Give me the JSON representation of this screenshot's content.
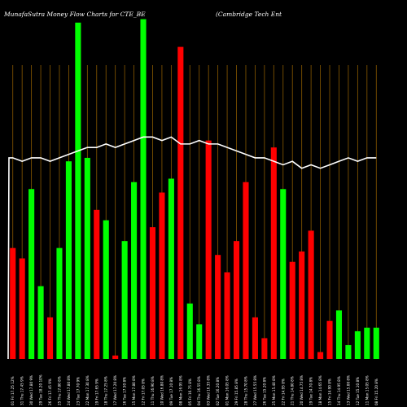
{
  "chart_data": {
    "type": "bar",
    "title_left": "MunafaSutra  Money Flow  Charts for CTE_BE",
    "title_right": "(Cambridge   Tech Ent",
    "categories": [
      "01 Fri 17.25 12%",
      "31 Thu 17.45 9%",
      "30 Wed 17.80 9%",
      "29 Tue 18.20 10%",
      "26 Fri 17.45 9%",
      "25 Thu 17.80 8%",
      "24 Wed 17.80 8%",
      "23 Tue 17.70 9%",
      "22 Mon 17.30 8%",
      "19 Fri 17.65 9%",
      "18 Thu 17.25 8%",
      "17 Wed 17.20 8%",
      "16 Tue 17.50 8%",
      "15 Mon 17.80 8%",
      "12 Fri 17.05 8%",
      "11 Thu 16.90 8%",
      "10 Wed 16.80 8%",
      "09 Tue 17.10 8%",
      "08 Mon 16.95 8%",
      "05 Fri 16.75 8%",
      "04 Thu 16.55 8%",
      "03 Wed 16.35 8%",
      "02 Tue 16.20 8%",
      "01 Mon 16.05 8%",
      "29 Fri 15.85 8%",
      "28 Thu 15.70 8%",
      "27 Wed 15.55 8%",
      "26 Tue 15.20 8%",
      "25 Mon 15.40 8%",
      "22 Fri 14.95 8%",
      "21 Thu 14.80 8%",
      "20 Wed 14.75 8%",
      "19 Tue 14.70 8%",
      "18 Mon 14.65 8%",
      "15 Fri 14.90 8%",
      "14 Thu 14.95 8%",
      "13 Wed 15.00 8%",
      "12 Tue 15.10 8%",
      "11 Mon 15.05 8%",
      "08 Fri 15.20 8%"
    ],
    "bar_values": [
      32,
      29,
      49,
      21,
      12,
      32,
      57,
      97,
      58,
      43,
      40,
      1,
      34,
      51,
      98,
      38,
      48,
      52,
      90,
      16,
      10,
      63,
      30,
      25,
      34,
      51,
      12,
      6,
      61,
      49,
      28,
      31,
      37,
      2,
      11,
      14,
      4,
      8,
      9,
      9
    ],
    "bar_colors": [
      "red",
      "red",
      "green",
      "green",
      "red",
      "green",
      "green",
      "green",
      "green",
      "red",
      "green",
      "red",
      "green",
      "green",
      "green",
      "red",
      "red",
      "green",
      "red",
      "green",
      "green",
      "red",
      "red",
      "red",
      "red",
      "red",
      "red",
      "red",
      "red",
      "green",
      "red",
      "red",
      "red",
      "red",
      "red",
      "green",
      "green",
      "green",
      "green",
      "green"
    ],
    "line_values": [
      58,
      57,
      58,
      58,
      57,
      58,
      59,
      60,
      61,
      61,
      62,
      61,
      62,
      63,
      64,
      64,
      63,
      64,
      62,
      62,
      63,
      62,
      62,
      61,
      60,
      59,
      58,
      58,
      57,
      56,
      57,
      55,
      56,
      55,
      56,
      57,
      58,
      57,
      58,
      58
    ],
    "ylim": [
      0,
      100
    ],
    "line_ylim": [
      0,
      100
    ],
    "grid_color": "#8a5a00",
    "red_color": "#ff0000",
    "green_color": "#00ff00",
    "line_color": "#ffffff",
    "background": "#000000"
  }
}
